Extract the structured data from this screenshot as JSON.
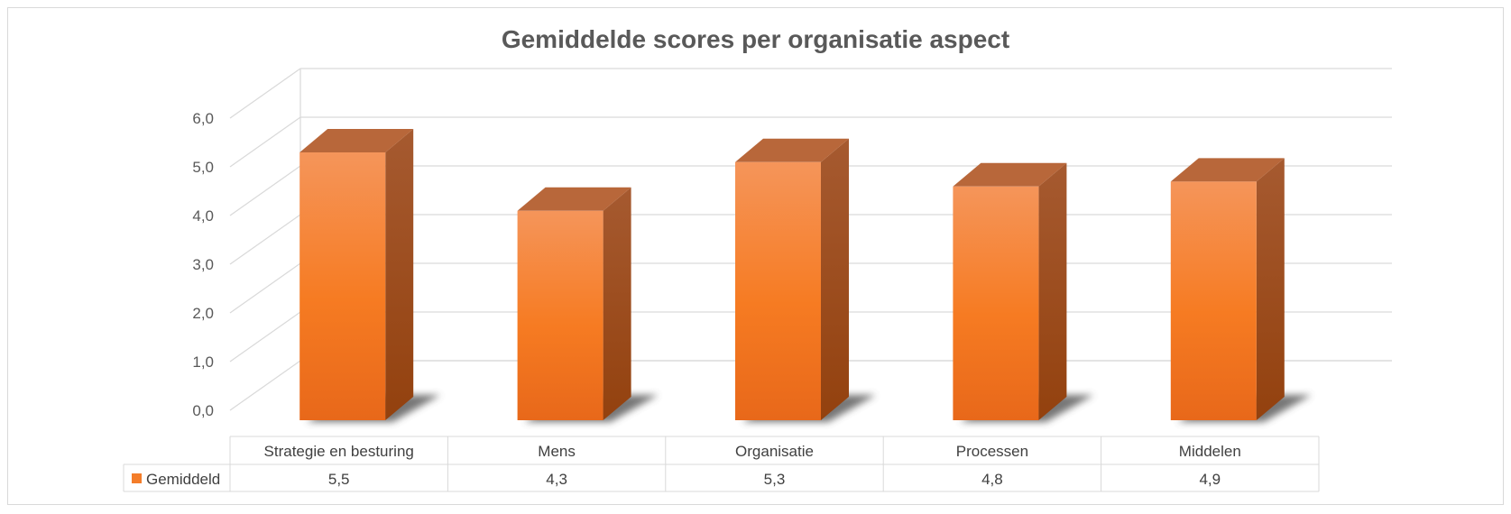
{
  "chart_data": {
    "type": "bar",
    "title": "Gemiddelde scores per organisatie aspect",
    "categories": [
      "Strategie en besturing",
      "Mens",
      "Organisatie",
      "Processen",
      "Middelen"
    ],
    "series": [
      {
        "name": "Gemiddeld",
        "values": [
          5.5,
          4.3,
          5.3,
          4.8,
          4.9
        ],
        "value_labels": [
          "5,5",
          "4,3",
          "5,3",
          "4,8",
          "4,9"
        ]
      }
    ],
    "ylim": [
      0,
      6
    ],
    "yticks": [
      "0,0",
      "1,0",
      "2,0",
      "3,0",
      "4,0",
      "5,0",
      "6,0"
    ],
    "legend": "data-table",
    "grid": true,
    "colors": {
      "bar_front": "#f47d2a",
      "bar_side": "#a04a14",
      "bar_top": "#b8673a",
      "grid": "#d9d9d9",
      "text": "#595959"
    }
  }
}
